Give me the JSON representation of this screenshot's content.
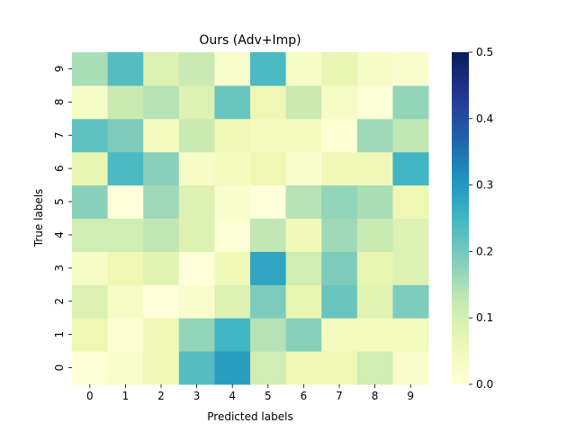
{
  "chart_data": {
    "type": "heatmap",
    "title": "Ours (Adv+Imp)",
    "xlabel": "Predicted labels",
    "ylabel": "True labels",
    "x_categories": [
      "0",
      "1",
      "2",
      "3",
      "4",
      "5",
      "6",
      "7",
      "8",
      "9"
    ],
    "y_categories": [
      "0",
      "1",
      "2",
      "3",
      "4",
      "5",
      "6",
      "7",
      "8",
      "9"
    ],
    "y_order": "bottom-to-top",
    "colorscale": "YlGnBu",
    "vmin": 0.0,
    "vmax": 0.5,
    "colorbar_ticks": [
      "0.0",
      "0.1",
      "0.2",
      "0.3",
      "0.4",
      "0.5"
    ],
    "matrix": [
      [
        0.01,
        0.02,
        0.05,
        0.23,
        0.29,
        0.11,
        0.06,
        0.06,
        0.11,
        0.02
      ],
      [
        0.06,
        0.01,
        0.05,
        0.17,
        0.25,
        0.14,
        0.18,
        0.04,
        0.04,
        0.04
      ],
      [
        0.09,
        0.03,
        0.0,
        0.02,
        0.09,
        0.19,
        0.07,
        0.21,
        0.08,
        0.19
      ],
      [
        0.03,
        0.06,
        0.08,
        0.0,
        0.05,
        0.28,
        0.11,
        0.19,
        0.07,
        0.09
      ],
      [
        0.11,
        0.11,
        0.13,
        0.09,
        0.01,
        0.13,
        0.05,
        0.16,
        0.12,
        0.09
      ],
      [
        0.18,
        0.0,
        0.16,
        0.09,
        0.02,
        0.0,
        0.14,
        0.17,
        0.15,
        0.06
      ],
      [
        0.07,
        0.24,
        0.18,
        0.03,
        0.04,
        0.06,
        0.02,
        0.05,
        0.05,
        0.25
      ],
      [
        0.22,
        0.19,
        0.04,
        0.12,
        0.05,
        0.04,
        0.04,
        0.01,
        0.16,
        0.13
      ],
      [
        0.03,
        0.12,
        0.14,
        0.09,
        0.21,
        0.06,
        0.12,
        0.03,
        0.01,
        0.17
      ],
      [
        0.15,
        0.23,
        0.09,
        0.12,
        0.02,
        0.24,
        0.03,
        0.07,
        0.03,
        0.02
      ]
    ]
  }
}
